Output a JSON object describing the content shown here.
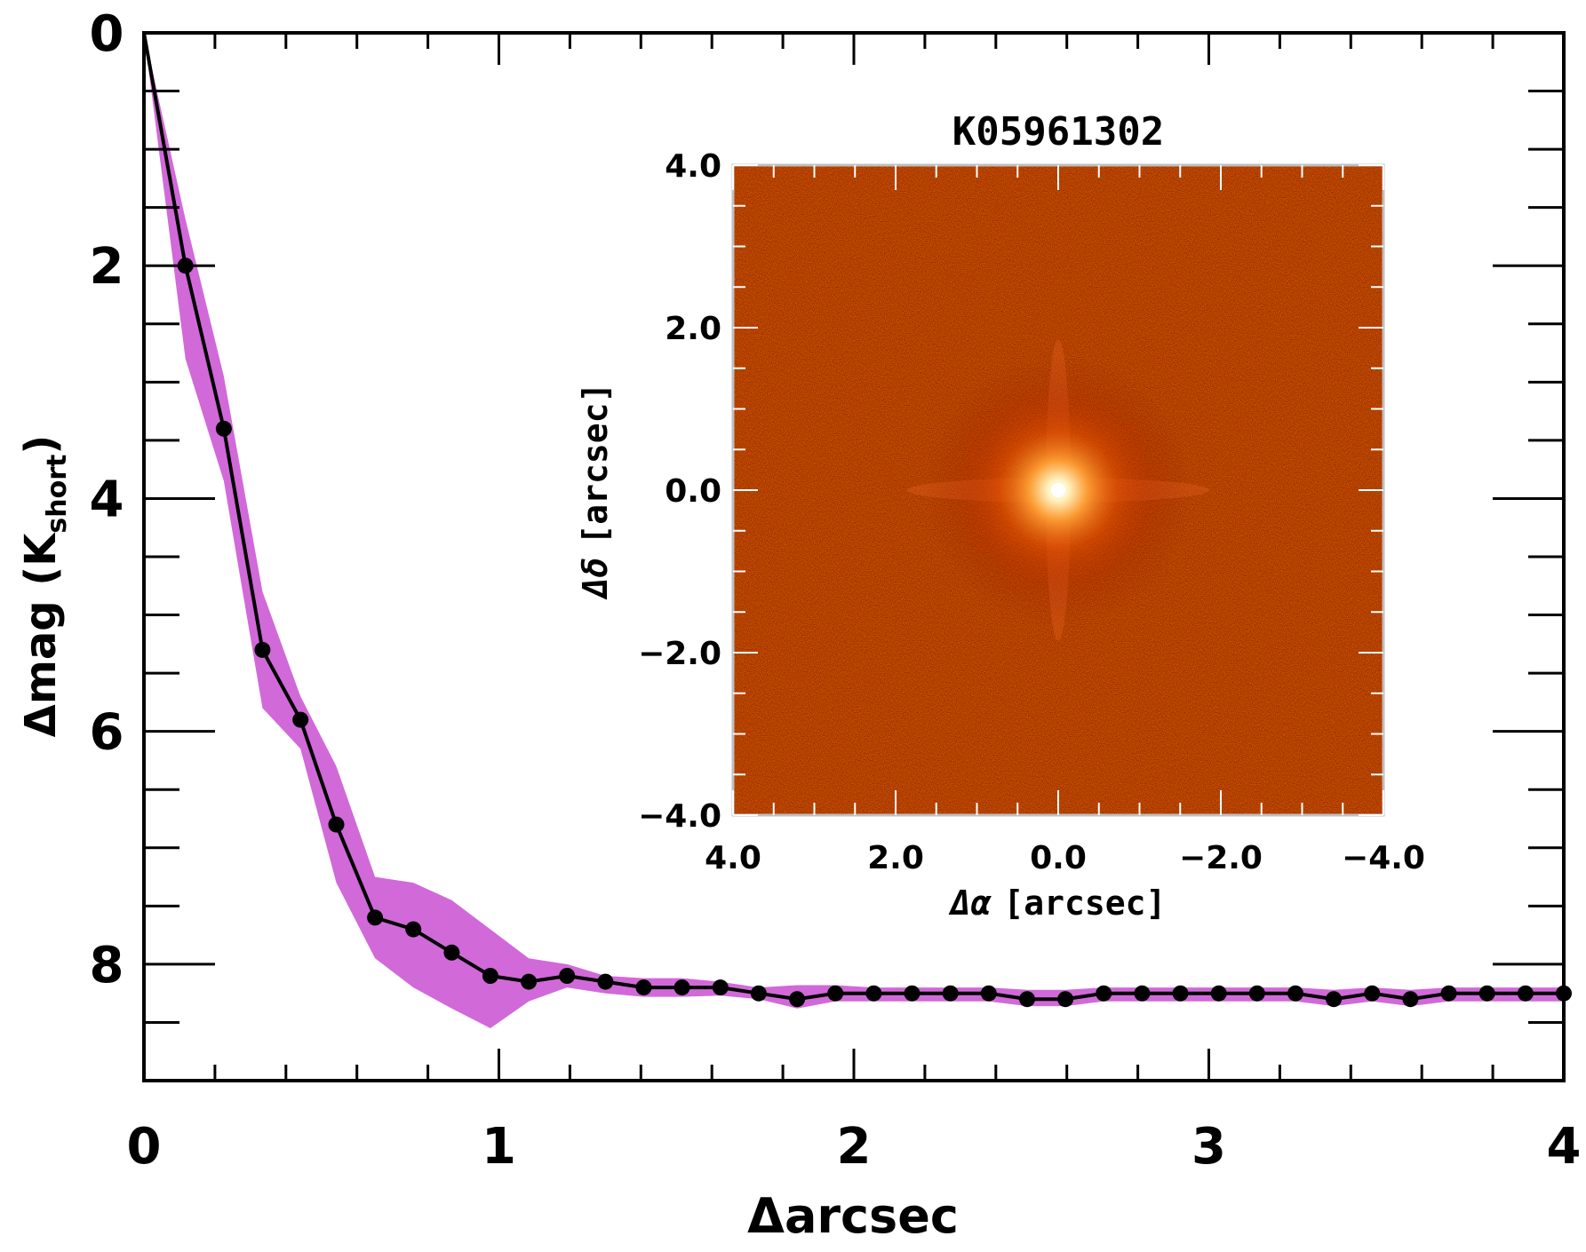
{
  "chart_data": [
    {
      "type": "line",
      "xlabel_prefix": "Δ",
      "xlabel_main": "arcsec",
      "ylabel_prefix": "Δ",
      "ylabel_main": "mag (K",
      "ylabel_sub": "short",
      "ylabel_close": ")",
      "xlim": [
        0,
        4
      ],
      "ylim": [
        9,
        0
      ],
      "x_ticks": [
        0,
        1,
        2,
        3,
        4
      ],
      "x_tick_labels": [
        "0",
        "1",
        "2",
        "3",
        "4"
      ],
      "y_ticks": [
        0,
        2,
        4,
        6,
        8
      ],
      "y_tick_labels": [
        "0",
        "2",
        "4",
        "6",
        "8"
      ],
      "colors": {
        "band": "#d169d9",
        "line": "#000000"
      },
      "x": [
        0,
        0.117,
        0.225,
        0.334,
        0.441,
        0.542,
        0.651,
        0.759,
        0.867,
        0.976,
        1.084,
        1.192,
        1.3,
        1.408,
        1.516,
        1.624,
        1.732,
        1.84,
        1.948,
        2.056,
        2.164,
        2.272,
        2.38,
        2.488,
        2.596,
        2.704,
        2.812,
        2.92,
        3.028,
        3.136,
        3.244,
        3.352,
        3.46,
        3.568,
        3.676,
        3.784,
        3.892,
        4.0
      ],
      "y": [
        0,
        2.0,
        3.4,
        5.3,
        5.9,
        6.8,
        7.6,
        7.7,
        7.9,
        8.1,
        8.15,
        8.1,
        8.15,
        8.2,
        8.2,
        8.2,
        8.25,
        8.3,
        8.25,
        8.25,
        8.25,
        8.25,
        8.25,
        8.3,
        8.3,
        8.25,
        8.25,
        8.25,
        8.25,
        8.25,
        8.25,
        8.3,
        8.25,
        8.3,
        8.25,
        8.25,
        8.25,
        8.25
      ],
      "y_low": [
        0,
        1.6,
        2.95,
        4.8,
        5.7,
        6.3,
        7.25,
        7.3,
        7.45,
        7.7,
        7.95,
        8.0,
        8.1,
        8.12,
        8.12,
        8.15,
        8.2,
        8.18,
        8.18,
        8.2,
        8.2,
        8.2,
        8.2,
        8.22,
        8.22,
        8.2,
        8.2,
        8.2,
        8.2,
        8.2,
        8.2,
        8.22,
        8.2,
        8.22,
        8.2,
        8.2,
        8.2,
        8.2
      ],
      "y_high": [
        0,
        2.8,
        3.85,
        5.8,
        6.15,
        7.3,
        7.95,
        8.2,
        8.38,
        8.55,
        8.32,
        8.2,
        8.25,
        8.28,
        8.28,
        8.27,
        8.3,
        8.38,
        8.32,
        8.32,
        8.32,
        8.32,
        8.32,
        8.36,
        8.36,
        8.32,
        8.32,
        8.32,
        8.32,
        8.32,
        8.32,
        8.36,
        8.32,
        8.36,
        8.32,
        8.32,
        8.32,
        8.32
      ]
    },
    {
      "type": "heatmap",
      "title": "K05961302",
      "xlabel_prefix": "Δα",
      "xlabel_main": "[arcsec]",
      "ylabel_prefix": "Δδ",
      "ylabel_main": "[arcsec]",
      "xlim": [
        4.0,
        -4.0
      ],
      "ylim": [
        -4.0,
        4.0
      ],
      "x_ticks": [
        4.0,
        2.0,
        0.0,
        -2.0,
        -4.0
      ],
      "x_tick_labels": [
        "4.0",
        "2.0",
        "0.0",
        "−2.0",
        "−4.0"
      ],
      "y_ticks": [
        4.0,
        2.0,
        0.0,
        -2.0,
        -4.0
      ],
      "y_tick_labels": [
        "4.0",
        "2.0",
        "0.0",
        "−2.0",
        "−4.0"
      ],
      "source_center": [
        0.0,
        0.0
      ],
      "colormap": {
        "background": "#5a0a00",
        "mid": "#d83a00",
        "peak": "#ffffff"
      }
    }
  ]
}
